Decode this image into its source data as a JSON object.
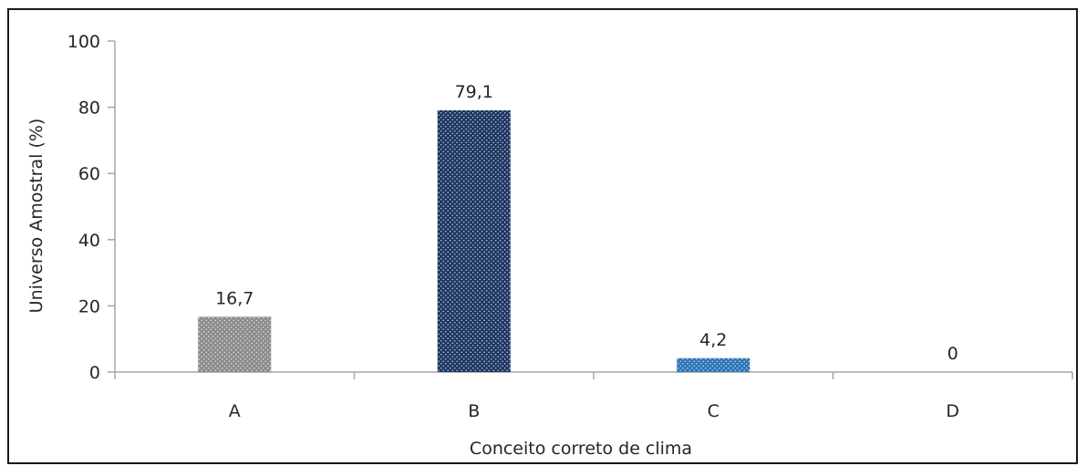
{
  "chart_data": {
    "type": "bar",
    "categories": [
      "A",
      "B",
      "C",
      "D"
    ],
    "values": [
      16.7,
      79.1,
      4.2,
      0
    ],
    "data_labels": [
      "16,7",
      "79,1",
      "4,2",
      "0"
    ],
    "bar_colors": [
      "#8c8c8c",
      "#1f3864",
      "#2e75b6",
      "#2e75b6"
    ],
    "bar_fill": "dotted-pattern",
    "title": "",
    "xlabel": "Conceito correto de clima",
    "ylabel": "Universo Amostral (%)",
    "ylim": [
      0,
      100
    ],
    "yticks": [
      "0",
      "20",
      "40",
      "60",
      "80",
      "100"
    ],
    "ytick_values": [
      0,
      20,
      40,
      60,
      80,
      100
    ],
    "grid": false,
    "legend": "none"
  }
}
